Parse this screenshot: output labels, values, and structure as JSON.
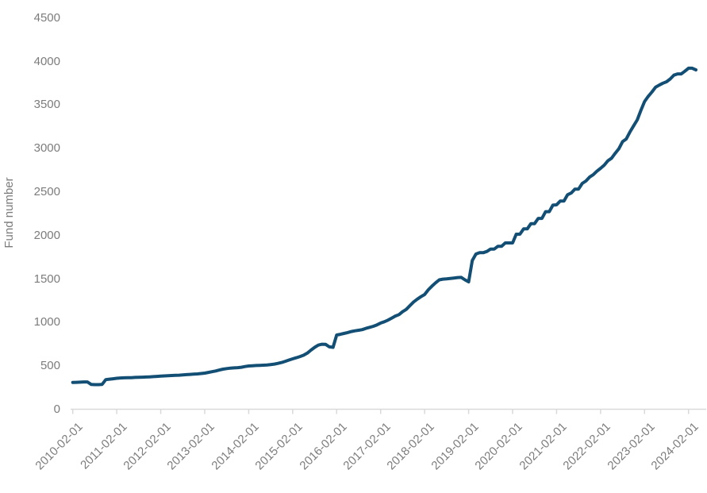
{
  "chart_data": {
    "type": "line",
    "title": "",
    "xlabel": "",
    "ylabel": "Fund number",
    "legend": null,
    "grid": false,
    "ylim": [
      0,
      4500
    ],
    "y_tick_step": 500,
    "y_ticks": [
      0,
      500,
      1000,
      1500,
      2000,
      2500,
      3000,
      3500,
      4000,
      4500
    ],
    "x_tick_labels": [
      "2010-02-01",
      "2011-02-01",
      "2012-02-01",
      "2013-02-01",
      "2014-02-01",
      "2015-02-01",
      "2016-02-01",
      "2017-02-01",
      "2018-02-01",
      "2019-02-01",
      "2020-02-01",
      "2021-02-01",
      "2022-02-01",
      "2023-02-01",
      "2024-02-01"
    ],
    "x_start": "2010-02-01",
    "x_step": "monthly",
    "series": [
      {
        "name": "Fund number",
        "values": [
          312,
          314,
          316,
          318,
          318,
          290,
          287,
          287,
          290,
          345,
          350,
          355,
          360,
          364,
          366,
          368,
          368,
          370,
          371,
          373,
          375,
          377,
          380,
          382,
          385,
          388,
          390,
          392,
          394,
          396,
          399,
          402,
          405,
          408,
          411,
          415,
          420,
          428,
          436,
          444,
          455,
          465,
          472,
          477,
          480,
          483,
          487,
          495,
          502,
          505,
          507,
          509,
          511,
          514,
          518,
          524,
          532,
          542,
          556,
          570,
          584,
          597,
          610,
          626,
          650,
          684,
          716,
          742,
          752,
          750,
          722,
          716,
          858,
          866,
          876,
          886,
          898,
          906,
          912,
          920,
          934,
          946,
          958,
          974,
          995,
          1010,
          1028,
          1052,
          1076,
          1092,
          1126,
          1152,
          1196,
          1238,
          1270,
          1298,
          1323,
          1378,
          1420,
          1458,
          1492,
          1500,
          1504,
          1508,
          1513,
          1518,
          1520,
          1492,
          1469,
          1714,
          1788,
          1804,
          1804,
          1818,
          1846,
          1846,
          1878,
          1878,
          1916,
          1916,
          1916,
          2016,
          2016,
          2078,
          2078,
          2138,
          2138,
          2198,
          2198,
          2276,
          2276,
          2350,
          2354,
          2398,
          2398,
          2470,
          2490,
          2535,
          2535,
          2600,
          2628,
          2672,
          2700,
          2740,
          2774,
          2810,
          2860,
          2890,
          2946,
          3000,
          3080,
          3110,
          3190,
          3260,
          3330,
          3440,
          3541,
          3600,
          3650,
          3705,
          3730,
          3752,
          3768,
          3800,
          3844,
          3859,
          3859,
          3890,
          3924,
          3924,
          3905
        ]
      }
    ],
    "colors": {
      "line": "#134f74",
      "axis": "#d9d9d9",
      "labels": "#7c7c7c",
      "background": "#ffffff"
    }
  }
}
